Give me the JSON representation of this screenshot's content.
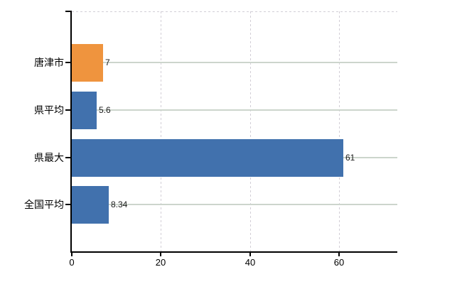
{
  "chart_data": {
    "type": "bar",
    "orientation": "horizontal",
    "title": "",
    "categories": [
      "唐津市",
      "県平均",
      "県最大",
      "全国平均"
    ],
    "values": [
      7,
      5.6,
      61,
      8.34
    ],
    "value_labels": [
      "7",
      "5.6",
      "61",
      "8.34"
    ],
    "series": [
      {
        "name": "",
        "values": [
          7,
          5.6,
          61,
          8.34
        ]
      }
    ],
    "bar_colors": [
      "#ef943e",
      "#4171ad",
      "#4171ad",
      "#4171ad"
    ],
    "x_ticks": [
      {
        "value": 0,
        "label": "0"
      },
      {
        "value": 20,
        "label": "20"
      },
      {
        "value": 40,
        "label": "40"
      },
      {
        "value": 60,
        "label": "60"
      }
    ],
    "xlim": [
      0,
      73.2
    ],
    "legend_position": "none",
    "grid": {
      "horizontal_style": "solid",
      "vertical_style": "dashed",
      "top_border_style": "dashed"
    },
    "colors": {
      "bar_highlight": "#ef943e",
      "bar_default": "#4171ad",
      "grid_horizontal": "#ccd5cc",
      "grid_vertical": "#d2ced6",
      "axis": "#000000",
      "text": "#000000"
    }
  }
}
